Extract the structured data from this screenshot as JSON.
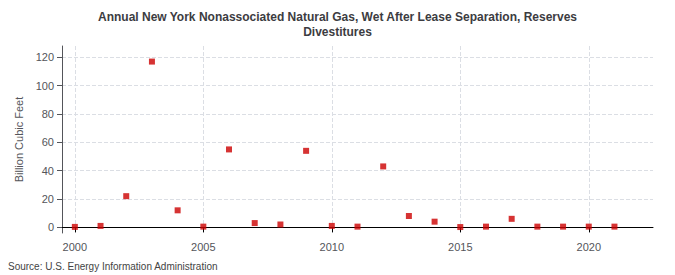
{
  "chart_data": {
    "type": "scatter",
    "title": "Annual New York Nonassociated Natural Gas, Wet After Lease Separation, Reserves\nDivestitures",
    "ylabel": "Billion Cubic Feet",
    "annotation": "Source: U.S. Energy Information Administration",
    "x": [
      2000,
      2001,
      2002,
      2003,
      2004,
      2005,
      2006,
      2007,
      2008,
      2009,
      2010,
      2011,
      2012,
      2013,
      2014,
      2015,
      2016,
      2017,
      2018,
      2019,
      2020,
      2021
    ],
    "values": [
      0.3,
      1.0,
      22.0,
      117.0,
      12.0,
      0.5,
      55.0,
      3.0,
      2.0,
      54.0,
      1.0,
      0.5,
      43.0,
      8.0,
      4.0,
      0.2,
      0.5,
      6.0,
      0.5,
      0.5,
      0.5,
      0.5
    ],
    "color": "#cc0000",
    "marker": "square",
    "xlim": [
      1999.5,
      2022.5
    ],
    "xticks": [
      2000,
      2005,
      2010,
      2015,
      2020
    ],
    "ylim": [
      -4,
      128
    ],
    "yticks": [
      0,
      20,
      40,
      60,
      80,
      100,
      120
    ],
    "grid": true
  }
}
